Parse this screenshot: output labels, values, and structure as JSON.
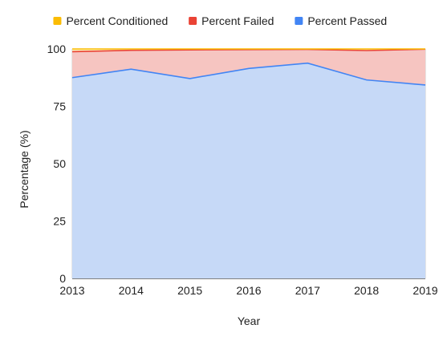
{
  "chart_data": {
    "type": "area",
    "stacked": true,
    "title": "",
    "xlabel": "Year",
    "ylabel": "Percentage (%)",
    "x": [
      "2013",
      "2014",
      "2015",
      "2016",
      "2017",
      "2018",
      "2019"
    ],
    "ylim": [
      0,
      100
    ],
    "yticks": [
      0,
      25,
      50,
      75,
      100
    ],
    "grid": true,
    "legend_position": "top",
    "series": [
      {
        "name": "Percent Passed",
        "color": "#4285f4",
        "fill": "#c6d9f7",
        "values": [
          87.5,
          91.2,
          87.1,
          91.5,
          93.8,
          86.5,
          84.3
        ]
      },
      {
        "name": "Percent Failed",
        "color": "#ea4335",
        "fill": "#f6c5c1",
        "values": [
          11.3,
          8.2,
          12.5,
          8.2,
          6.0,
          12.8,
          15.6
        ]
      },
      {
        "name": "Percent Conditioned",
        "color": "#fbbc04",
        "fill": "#fdeeb6",
        "values": [
          1.2,
          0.6,
          0.4,
          0.3,
          0.2,
          0.7,
          0.1
        ]
      }
    ],
    "legend_order": [
      "Percent Conditioned",
      "Percent Failed",
      "Percent Passed"
    ]
  }
}
